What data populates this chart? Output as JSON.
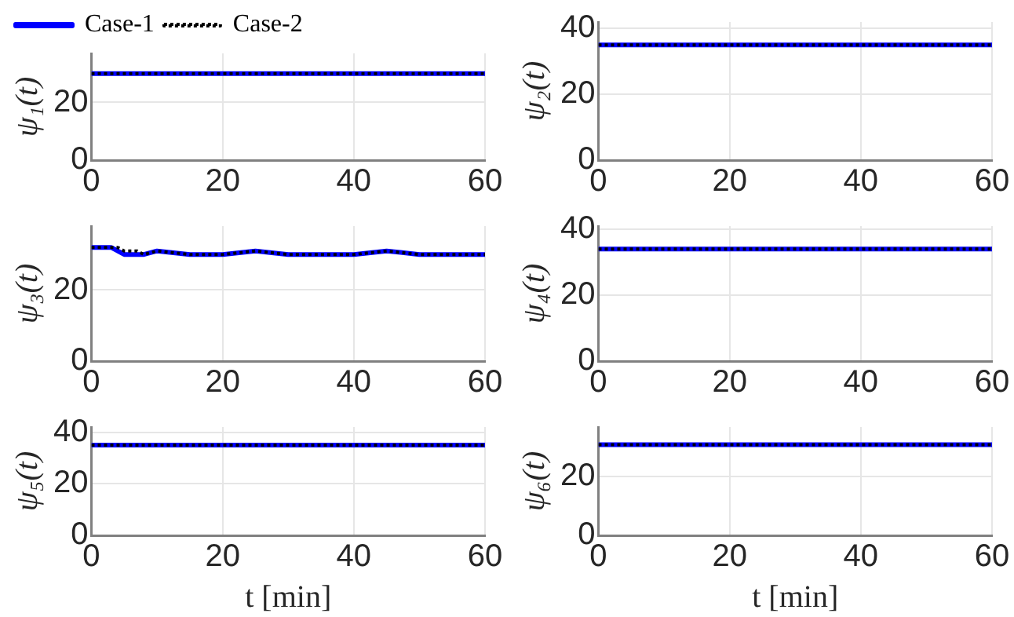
{
  "chart_data": [
    {
      "type": "line",
      "ylabel": "ψ₁(t)",
      "xlim": [
        0,
        60
      ],
      "xticks": [
        0,
        20,
        40,
        60
      ],
      "ylim": [
        0,
        37
      ],
      "yticks": [
        0,
        20
      ],
      "grid": true,
      "legend": "top left",
      "marker": "none",
      "series": [
        {
          "name": "Case-1",
          "color": "#0000ff",
          "line_style": "solid",
          "x": [
            0,
            60
          ],
          "values": [
            30,
            30
          ]
        },
        {
          "name": "Case-2",
          "color": "#000000",
          "line_style": "dotted",
          "x": [
            0,
            60
          ],
          "values": [
            30,
            30
          ]
        }
      ]
    },
    {
      "type": "line",
      "ylabel": "ψ₂(t)",
      "xlim": [
        0,
        60
      ],
      "xticks": [
        0,
        20,
        40,
        60
      ],
      "ylim": [
        0,
        42
      ],
      "yticks": [
        0,
        20,
        40
      ],
      "grid": true,
      "marker": "none",
      "series": [
        {
          "color": "#0000ff",
          "line_style": "solid",
          "x": [
            0,
            60
          ],
          "values": [
            35,
            35
          ]
        },
        {
          "color": "#000000",
          "line_style": "dotted",
          "x": [
            0,
            60
          ],
          "values": [
            35,
            35
          ]
        }
      ]
    },
    {
      "type": "line",
      "ylabel": "ψ₃(t)",
      "xlim": [
        0,
        60
      ],
      "xticks": [
        0,
        20,
        40,
        60
      ],
      "ylim": [
        0,
        38
      ],
      "yticks": [
        0,
        20
      ],
      "grid": true,
      "marker": "none",
      "series": [
        {
          "color": "#0000ff",
          "line_style": "solid",
          "x": [
            0,
            3,
            4,
            5,
            6,
            8,
            10,
            15,
            20,
            25,
            30,
            35,
            40,
            45,
            50,
            55,
            60
          ],
          "values": [
            32,
            32,
            31,
            30,
            30,
            30,
            31,
            30,
            30,
            31,
            30,
            30,
            30,
            31,
            30,
            30,
            30
          ]
        },
        {
          "color": "#000000",
          "line_style": "dotted",
          "x": [
            0,
            3,
            4,
            5,
            6,
            7,
            8,
            10,
            15,
            20,
            25,
            30,
            35,
            40,
            45,
            50,
            55,
            60
          ],
          "values": [
            32,
            32,
            32,
            31,
            31,
            31,
            30,
            31,
            30,
            30,
            31,
            30,
            30,
            30,
            31,
            30,
            30,
            30
          ]
        }
      ]
    },
    {
      "type": "line",
      "ylabel": "ψ₄(t)",
      "xlim": [
        0,
        60
      ],
      "xticks": [
        0,
        20,
        40,
        60
      ],
      "ylim": [
        0,
        41
      ],
      "yticks": [
        0,
        20,
        40
      ],
      "grid": true,
      "marker": "none",
      "series": [
        {
          "color": "#0000ff",
          "line_style": "solid",
          "x": [
            0,
            60
          ],
          "values": [
            34,
            34
          ]
        },
        {
          "color": "#000000",
          "line_style": "dotted",
          "x": [
            0,
            60
          ],
          "values": [
            34,
            34
          ]
        }
      ]
    },
    {
      "type": "line",
      "ylabel": "ψ₅(t)",
      "xlabel": "t [min]",
      "xlim": [
        0,
        60
      ],
      "xticks": [
        0,
        20,
        40,
        60
      ],
      "ylim": [
        0,
        42
      ],
      "yticks": [
        0,
        20,
        40
      ],
      "grid": true,
      "marker": "none",
      "series": [
        {
          "color": "#0000ff",
          "line_style": "solid",
          "x": [
            0,
            60
          ],
          "values": [
            35,
            35
          ]
        },
        {
          "color": "#000000",
          "line_style": "dotted",
          "x": [
            0,
            60
          ],
          "values": [
            35,
            35
          ]
        }
      ]
    },
    {
      "type": "line",
      "ylabel": "ψ₆(t)",
      "xlabel": "t [min]",
      "xlim": [
        0,
        60
      ],
      "xticks": [
        0,
        20,
        40,
        60
      ],
      "ylim": [
        0,
        37
      ],
      "yticks": [
        0,
        20
      ],
      "grid": true,
      "marker": "none",
      "series": [
        {
          "color": "#0000ff",
          "line_style": "solid",
          "x": [
            0,
            60
          ],
          "values": [
            31,
            31
          ]
        },
        {
          "color": "#000000",
          "line_style": "dotted",
          "x": [
            0,
            60
          ],
          "values": [
            31,
            31
          ]
        }
      ]
    }
  ]
}
